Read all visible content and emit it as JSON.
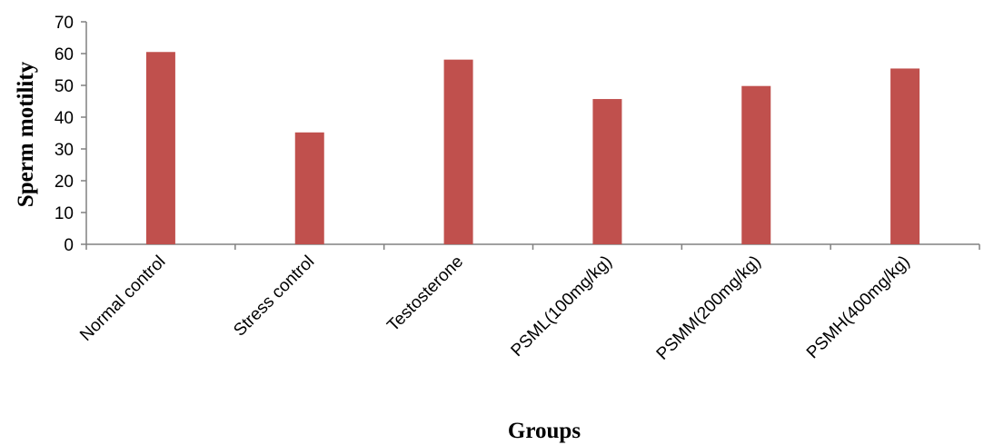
{
  "chart_data": {
    "type": "bar",
    "categories": [
      "Normal control",
      "Stress control",
      "Testosterone",
      "PSML(100mg/kg)",
      "PSMM(200mg/kg)",
      "PSMH(400mg/kg)"
    ],
    "values": [
      60.5,
      35.2,
      58.1,
      45.7,
      49.8,
      55.3
    ],
    "xlabel": "Groups",
    "ylabel": "Sperm motility",
    "ylim": [
      0,
      70
    ],
    "yticks": [
      0,
      10,
      20,
      30,
      40,
      50,
      60,
      70
    ],
    "bar_color": "#c0504d",
    "grid": false,
    "legend": "none"
  }
}
